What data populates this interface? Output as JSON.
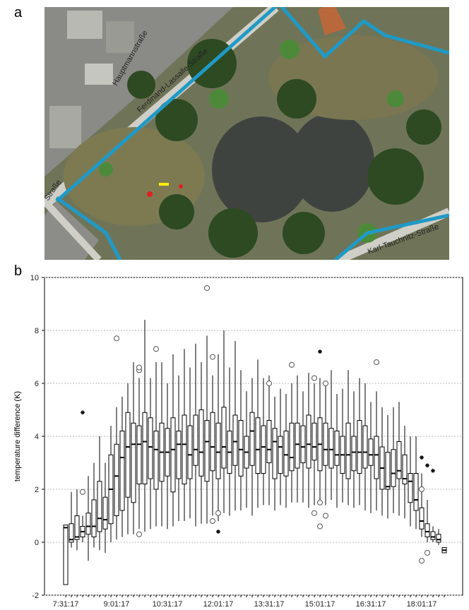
{
  "panel_labels": [
    "a",
    "b"
  ],
  "map": {
    "street_labels": [
      "Hauptmannstraße",
      "Ferdinand-Lassalle-Straße",
      "Karl-Tauchnitz-Straße",
      "Straße"
    ]
  },
  "chart_data": {
    "type": "box",
    "y_label": "temperature difference (K)",
    "color": "#000000",
    "grid": true,
    "ylim": [
      -2,
      10
    ],
    "yticks": [
      -2,
      0,
      2,
      4,
      6,
      8,
      10
    ],
    "categories": [
      "7:31:17",
      null,
      null,
      null,
      null,
      null,
      null,
      null,
      null,
      "9:01:17",
      null,
      null,
      null,
      null,
      null,
      null,
      null,
      null,
      "10:31:17",
      null,
      null,
      null,
      null,
      null,
      null,
      null,
      null,
      "12:01:17",
      null,
      null,
      null,
      null,
      null,
      null,
      null,
      null,
      "13:31:17",
      null,
      null,
      null,
      null,
      null,
      null,
      null,
      null,
      "15:01:17",
      null,
      null,
      null,
      null,
      null,
      null,
      null,
      null,
      "16:31:17",
      null,
      null,
      null,
      null,
      null,
      null,
      null,
      null,
      "18:01:17",
      null,
      null,
      null,
      null
    ],
    "whislo": [
      -1.6,
      -0.2,
      -0.3,
      0,
      -0.7,
      -0.2,
      -0.3,
      -0.4,
      0,
      0.1,
      0.2,
      0.3,
      0.3,
      0.5,
      0.4,
      0.5,
      0.6,
      0.6,
      0.5,
      0.6,
      0.8,
      0.8,
      0.9,
      0.6,
      0.7,
      0.7,
      1.0,
      0.8,
      1.1,
      1.0,
      1.2,
      1.2,
      1.3,
      1.0,
      1.3,
      1.4,
      1.4,
      1.2,
      1.4,
      1.3,
      1.5,
      1.5,
      1.5,
      1.3,
      1.4,
      1.5,
      1.4,
      1.6,
      1.3,
      1.5,
      1.4,
      1.3,
      1.4,
      1.2,
      1.1,
      1.2,
      1.0,
      0.9,
      1.1,
      1.0,
      0.9,
      0.6,
      0.5,
      0.2,
      0.0,
      0.0,
      -0.1,
      -0.4
    ],
    "q1": [
      -1.6,
      0,
      0.1,
      0.2,
      0.3,
      0.2,
      0.4,
      0.5,
      0.7,
      1.0,
      1.2,
      1.7,
      1.5,
      2.2,
      2.2,
      2.4,
      2.0,
      2.3,
      2.5,
      1.9,
      2.4,
      2.2,
      2.4,
      2.9,
      2.5,
      2.3,
      2.7,
      2.4,
      2.8,
      2.6,
      2.9,
      2.5,
      2.8,
      2.9,
      2.6,
      2.6,
      3.0,
      2.4,
      2.6,
      2.5,
      2.7,
      2.8,
      3.0,
      2.8,
      3.1,
      2.7,
      2.9,
      2.8,
      2.9,
      2.6,
      2.4,
      2.7,
      2.6,
      2.8,
      2.9,
      2.4,
      2.0,
      2.0,
      2.1,
      2.4,
      2.2,
      1.5,
      1.2,
      0.5,
      0.2,
      0.1,
      0.0,
      -0.4
    ],
    "med": [
      0.55,
      0.1,
      0.2,
      0.4,
      0.6,
      0.6,
      0.9,
      0.85,
      2.0,
      2.5,
      3.2,
      3.6,
      3.7,
      3.7,
      3.8,
      3.6,
      3.5,
      3.4,
      3.4,
      3.5,
      3.7,
      3.7,
      3.3,
      3.5,
      3.4,
      3.8,
      3.6,
      3.4,
      3.6,
      3.4,
      3.8,
      3.5,
      3.4,
      4.2,
      3.5,
      3.6,
      3.5,
      3.8,
      3.6,
      3.3,
      3.2,
      3.7,
      3.6,
      3.7,
      3.6,
      3.7,
      3.5,
      3.5,
      3.3,
      3.3,
      3.3,
      3.4,
      3.4,
      3.4,
      3.3,
      3.3,
      2.8,
      2.1,
      2.6,
      2.7,
      2.4,
      2.3,
      1.6,
      0.8,
      0.4,
      0.2,
      0.1,
      -0.3
    ],
    "q3": [
      0.65,
      0.7,
      1.0,
      0.6,
      1.1,
      1.6,
      2.3,
      1.7,
      3.3,
      3.7,
      4.2,
      4.9,
      4.5,
      4.4,
      4.9,
      4.7,
      4.2,
      4.5,
      4.3,
      4.7,
      4.2,
      4.8,
      4.4,
      4.8,
      5.0,
      4.6,
      4.9,
      4.5,
      5.1,
      4.2,
      4.8,
      4.6,
      4.0,
      4.9,
      4.7,
      4.4,
      4.6,
      4.3,
      4.0,
      4.2,
      4.5,
      4.5,
      4.4,
      4.8,
      4.5,
      4.7,
      4.5,
      4.3,
      4.2,
      4.0,
      4.5,
      4.0,
      4.6,
      4.4,
      3.9,
      4.0,
      3.6,
      3.4,
      3.5,
      3.8,
      3.3,
      2.6,
      2.6,
      1.3,
      0.7,
      0.4,
      0.3,
      -0.2
    ],
    "whishi": [
      0.65,
      1.9,
      2.0,
      1.0,
      2.5,
      3.0,
      4.0,
      3.0,
      4.4,
      5.1,
      5.5,
      6.0,
      6.8,
      6.2,
      8.4,
      6.2,
      6.8,
      6.8,
      6.0,
      7.1,
      6.3,
      7.3,
      6.6,
      7.5,
      6.8,
      7.8,
      6.3,
      7.1,
      8.0,
      6.6,
      7.6,
      6.5,
      5.7,
      6.2,
      6.9,
      6.2,
      6.3,
      5.5,
      5.8,
      5.6,
      6.0,
      6.3,
      5.7,
      6.4,
      6.0,
      6.2,
      5.9,
      6.5,
      5.6,
      5.8,
      6.5,
      5.7,
      6.2,
      6.0,
      5.3,
      5.7,
      5.1,
      4.8,
      5.1,
      5.3,
      4.4,
      4.0,
      4.0,
      2.6,
      1.6,
      0.6,
      0.5,
      -0.2
    ],
    "outliers": [
      {
        "box": 3,
        "value": 1.9
      },
      {
        "box": 9,
        "value": 7.7
      },
      {
        "box": 13,
        "value": 6.5
      },
      {
        "box": 13,
        "value": 6.6
      },
      {
        "box": 13,
        "value": 0.3
      },
      {
        "box": 16,
        "value": 7.3
      },
      {
        "box": 25,
        "value": 9.6
      },
      {
        "box": 26,
        "value": 7.0
      },
      {
        "box": 26,
        "value": 0.8
      },
      {
        "box": 27,
        "value": 1.1
      },
      {
        "box": 36,
        "value": 6.0
      },
      {
        "box": 40,
        "value": 6.7
      },
      {
        "box": 44,
        "value": 6.2
      },
      {
        "box": 44,
        "value": 1.1
      },
      {
        "box": 45,
        "value": 1.5
      },
      {
        "box": 45,
        "value": 0.6
      },
      {
        "box": 46,
        "value": 6.0
      },
      {
        "box": 46,
        "value": 1.0
      },
      {
        "box": 55,
        "value": 6.8
      },
      {
        "box": 63,
        "value": 2.0
      },
      {
        "box": 63,
        "value": -0.7
      },
      {
        "box": 64,
        "value": -0.4
      }
    ],
    "extremes": [
      {
        "box": 3,
        "value": 4.9
      },
      {
        "box": 27,
        "value": 0.4
      },
      {
        "box": 45,
        "value": 7.2
      },
      {
        "box": 63,
        "value": 3.2
      },
      {
        "box": 64,
        "value": 2.9
      },
      {
        "box": 65,
        "value": 2.7
      }
    ]
  }
}
